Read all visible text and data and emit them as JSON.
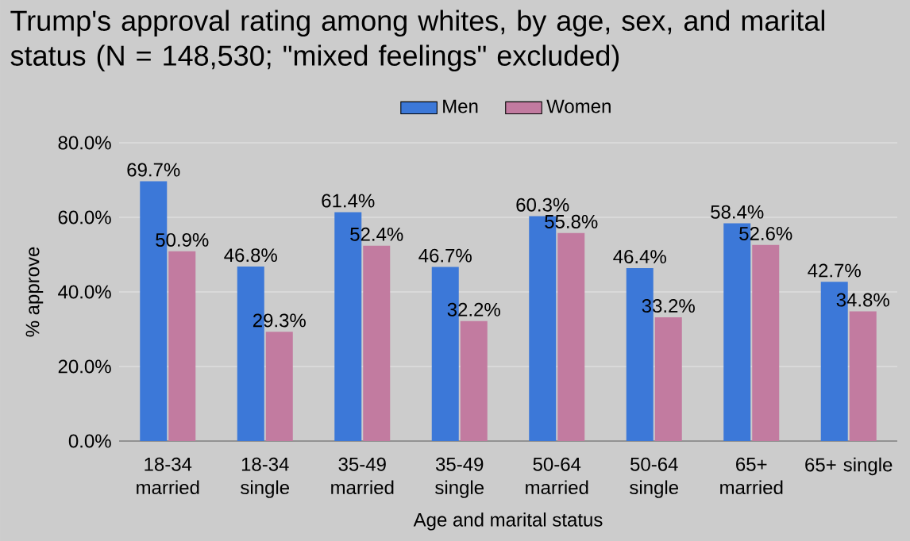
{
  "chart_data": {
    "type": "bar",
    "title": "Trump's approval rating among whites, by age, sex, and marital status (N = 148,530; \"mixed feelings\" excluded)",
    "xlabel": "Age and marital status",
    "ylabel": "% approve",
    "categories": [
      "18-34 married",
      "18-34 single",
      "35-49 married",
      "35-49 single",
      "50-64 married",
      "50-64 single",
      "65+ married",
      "65+ single"
    ],
    "series": [
      {
        "name": "Men",
        "color": "#3c78d8",
        "values": [
          69.7,
          46.8,
          61.4,
          46.7,
          60.3,
          46.4,
          58.4,
          42.7
        ],
        "value_labels": [
          "69.7%",
          "46.8%",
          "61.4%",
          "46.7%",
          "60.3%",
          "46.4%",
          "58.4%",
          "42.7%"
        ]
      },
      {
        "name": "Women",
        "color": "#c27ba0",
        "values": [
          50.9,
          29.3,
          52.4,
          32.2,
          55.8,
          33.2,
          52.6,
          34.8
        ],
        "value_labels": [
          "50.9%",
          "29.3%",
          "52.4%",
          "32.2%",
          "55.8%",
          "33.2%",
          "52.6%",
          "34.8%"
        ]
      }
    ],
    "ylim": [
      0,
      80
    ],
    "yticks": [
      {
        "value": 0,
        "label": "0.0%"
      },
      {
        "value": 20,
        "label": "20.0%"
      },
      {
        "value": 40,
        "label": "40.0%"
      },
      {
        "value": 60,
        "label": "60.0%"
      },
      {
        "value": 80,
        "label": "80.0%"
      }
    ],
    "grid": "y",
    "legend": "top"
  }
}
